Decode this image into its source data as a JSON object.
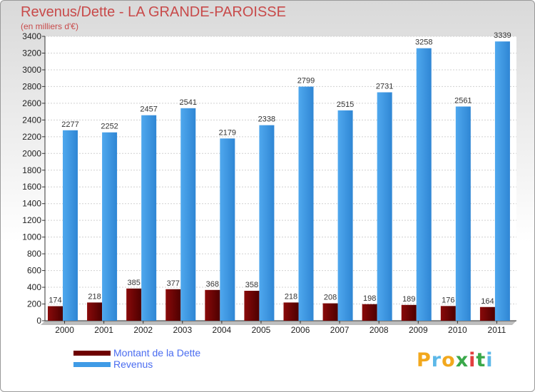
{
  "header": {
    "title": "Revenus/Dette - LA GRANDE-PAROISSE",
    "subtitle": "(en milliers d'€)"
  },
  "chart_data": {
    "type": "bar",
    "title": "Revenus/Dette - LA GRANDE-PAROISSE",
    "ylabel": "(en milliers d'€)",
    "xlabel": "",
    "categories": [
      "2000",
      "2001",
      "2002",
      "2003",
      "2004",
      "2005",
      "2006",
      "2007",
      "2008",
      "2009",
      "2010",
      "2011"
    ],
    "series": [
      {
        "name": "Montant de la Dette",
        "color": "#6e0000",
        "values": [
          174,
          218,
          385,
          377,
          368,
          358,
          218,
          208,
          198,
          189,
          176,
          164
        ]
      },
      {
        "name": "Revenus",
        "color": "#3f9be6",
        "values": [
          2277,
          2252,
          2457,
          2541,
          2179,
          2338,
          2799,
          2515,
          2731,
          3258,
          2561,
          3339
        ]
      }
    ],
    "ylim": [
      0,
      3400
    ],
    "yticks": [
      0,
      200,
      400,
      600,
      800,
      1000,
      1200,
      1400,
      1600,
      1800,
      2000,
      2200,
      2400,
      2600,
      2800,
      3000,
      3200,
      3400
    ],
    "grid": true,
    "legend_position": "bottom-left",
    "data_labels": true
  },
  "logo": {
    "letters": [
      "P",
      "r",
      "o",
      "x",
      "i",
      "t",
      "i"
    ],
    "colors": [
      "#f2a81d",
      "#5db8e8",
      "#f2a81d",
      "#3aa84a",
      "#e23e3e",
      "#3aa84a",
      "#5db8e8"
    ]
  }
}
